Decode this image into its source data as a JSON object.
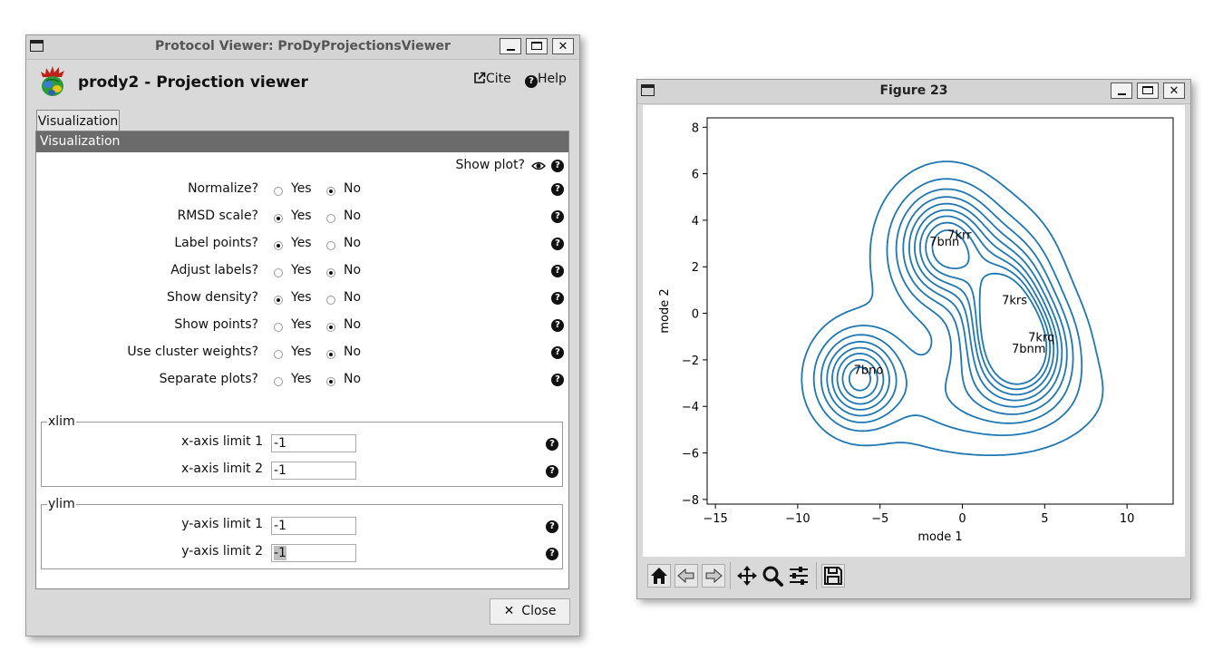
{
  "protocol_window": {
    "title": "Protocol Viewer: ProDyProjectionsViewer",
    "app_title": "prody2 - Projection viewer",
    "cite_label": "Cite",
    "help_label": "Help",
    "tab_label": "Visualization",
    "section_label": "Visualization",
    "show_plot_label": "Show plot?",
    "params": [
      {
        "label": "Normalize?",
        "yes": "Yes",
        "no": "No",
        "selected": "No"
      },
      {
        "label": "RMSD scale?",
        "yes": "Yes",
        "no": "No",
        "selected": "Yes"
      },
      {
        "label": "Label points?",
        "yes": "Yes",
        "no": "No",
        "selected": "Yes"
      },
      {
        "label": "Adjust labels?",
        "yes": "Yes",
        "no": "No",
        "selected": "No"
      },
      {
        "label": "Show density?",
        "yes": "Yes",
        "no": "No",
        "selected": "Yes"
      },
      {
        "label": "Show points?",
        "yes": "Yes",
        "no": "No",
        "selected": "No"
      },
      {
        "label": "Use cluster weights?",
        "yes": "Yes",
        "no": "No",
        "selected": "No"
      },
      {
        "label": "Separate plots?",
        "yes": "Yes",
        "no": "No",
        "selected": "No"
      }
    ],
    "xlim": {
      "legend": "xlim",
      "limit1_label": "x-axis limit 1",
      "limit1_value": "-1",
      "limit2_label": "x-axis limit 2",
      "limit2_value": "-1"
    },
    "ylim": {
      "legend": "ylim",
      "limit1_label": "y-axis limit 1",
      "limit1_value": "-1",
      "limit2_label": "y-axis limit 2",
      "limit2_value": "-1"
    },
    "close_label": "Close"
  },
  "figure_window": {
    "title": "Figure 23",
    "toolbar": [
      "home-icon",
      "back-icon",
      "forward-icon",
      "pan-icon",
      "zoom-icon",
      "configure-subplots-icon",
      "save-icon"
    ]
  },
  "chart_data": {
    "type": "contour",
    "xlabel": "mode 1",
    "ylabel": "mode 2",
    "xlim": [
      -15.5,
      12.8
    ],
    "ylim": [
      -8.2,
      8.4
    ],
    "xticks": [
      -15,
      -10,
      -5,
      0,
      5,
      10
    ],
    "yticks": [
      -8,
      -6,
      -4,
      -2,
      0,
      2,
      4,
      6,
      8
    ],
    "xtick_labels": [
      "−15",
      "−10",
      "−5",
      "0",
      "5",
      "10"
    ],
    "ytick_labels": [
      "−8",
      "−6",
      "−4",
      "−2",
      "0",
      "2",
      "4",
      "6",
      "8"
    ],
    "line_color": "#1f77b4",
    "density_levels": 9,
    "point_labels": [
      {
        "text": "7krr",
        "x": -0.9,
        "y": 3.2
      },
      {
        "text": "7bnn",
        "x": -2.0,
        "y": 2.9
      },
      {
        "text": "7krs",
        "x": 2.4,
        "y": 0.4
      },
      {
        "text": "7krq",
        "x": 4.0,
        "y": -1.2
      },
      {
        "text": "7bnm",
        "x": 3.0,
        "y": -1.7
      },
      {
        "text": "7bno",
        "x": -6.6,
        "y": -2.6
      }
    ]
  }
}
